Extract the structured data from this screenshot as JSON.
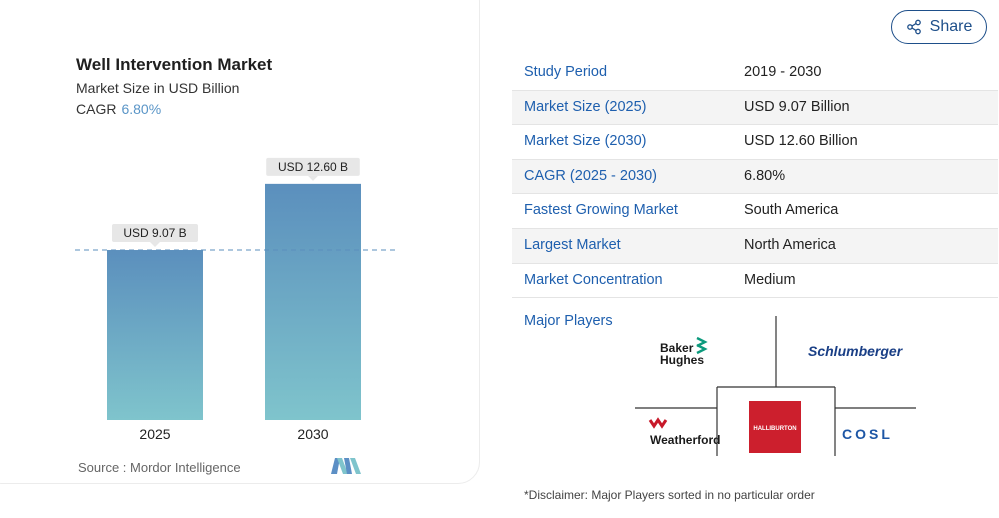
{
  "chart_card": {
    "title": "Well Intervention Market",
    "subtitle": "Market Size in USD Billion",
    "cagr_label": "CAGR",
    "cagr_value": "6.80%",
    "source": "Source :  Mordor Intelligence"
  },
  "chart_data": {
    "type": "bar",
    "categories": [
      "2025",
      "2030"
    ],
    "values": [
      9.07,
      12.6
    ],
    "data_labels": [
      "USD 9.07 B",
      "USD 12.60 B"
    ],
    "title": "Well Intervention Market",
    "subtitle": "Market Size in USD Billion",
    "xlabel": "",
    "ylabel": "",
    "ylim": [
      0,
      14.3
    ],
    "reference_line": 9.07,
    "grid": false,
    "bar_gradient": [
      "#5b8fbd",
      "#7fc4cc"
    ]
  },
  "share": {
    "label": "Share",
    "icon": "share-icon"
  },
  "stats": [
    {
      "label": "Study Period",
      "value": "2019 - 2030"
    },
    {
      "label": "Market Size (2025)",
      "value": "USD 9.07 Billion"
    },
    {
      "label": "Market Size (2030)",
      "value": "USD 12.60 Billion"
    },
    {
      "label": "CAGR (2025 - 2030)",
      "value": "6.80%"
    },
    {
      "label": "Fastest Growing Market",
      "value": "South America"
    },
    {
      "label": "Largest Market",
      "value": "North America"
    },
    {
      "label": "Market Concentration",
      "value": "Medium"
    }
  ],
  "major_players": {
    "label": "Major Players",
    "logos": [
      {
        "name": "baker-hughes",
        "text_line1": "Baker",
        "text_line2": "Hughes"
      },
      {
        "name": "schlumberger",
        "text": "Schlumberger"
      },
      {
        "name": "weatherford",
        "text": "Weatherford"
      },
      {
        "name": "halliburton",
        "text": "HALLIBURTON",
        "color": "#cc1f2d"
      },
      {
        "name": "cosl",
        "text": "COSL",
        "color": "#1d56a5"
      }
    ]
  },
  "disclaimer": "*Disclaimer: Major Players sorted in no particular order"
}
